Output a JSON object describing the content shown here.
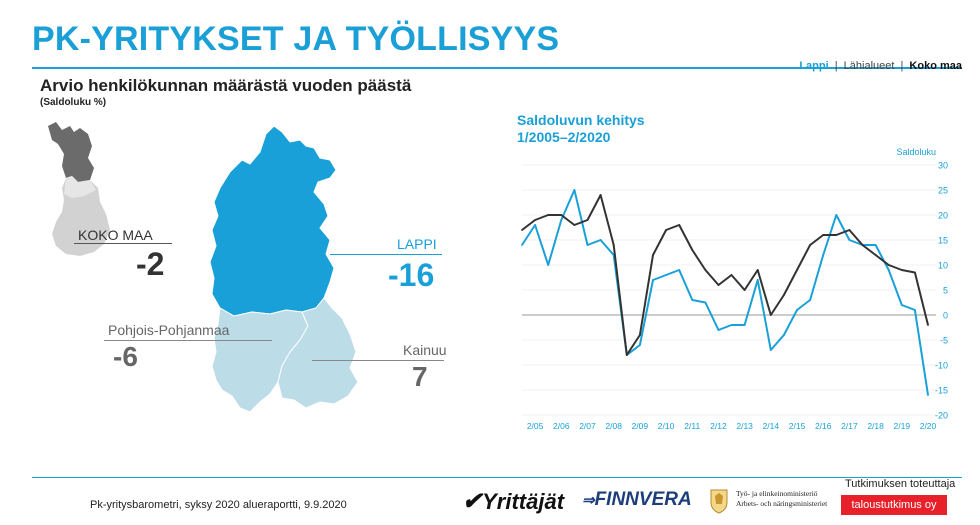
{
  "header": {
    "title": "PK-YRITYKSET JA TYÖLLISYYS",
    "region_nav": {
      "lappi": "Lappi",
      "sep1": "|",
      "lahialueet": "Lähialueet",
      "sep2": "|",
      "koko_maa": "Koko maa"
    }
  },
  "map_panel": {
    "title": "Arvio henkilökunnan määrästä vuoden päästä",
    "subtitle": "(Saldoluku %)",
    "regions": {
      "koko_maa": {
        "label": "KOKO MAA",
        "value": "-2"
      },
      "lappi": {
        "label": "LAPPI",
        "value": "-16"
      },
      "pohjois_pohjanmaa": {
        "label": "Pohjois-Pohjanmaa",
        "value": "-6"
      },
      "kainuu": {
        "label": "Kainuu",
        "value": "7"
      }
    },
    "colors": {
      "lappi": "#1aa0d8",
      "neighbors": "#bcdce8",
      "finland_dark": "#6b6b6b",
      "finland_light": "#d2d2d2"
    }
  },
  "chart_data": {
    "type": "line",
    "title": "Saldoluvun kehitys",
    "subtitle": "1/2005–2/2020",
    "ylabel": "Saldoluku",
    "ylim": [
      -20,
      30
    ],
    "yticks": [
      -20,
      -15,
      -10,
      -5,
      0,
      5,
      10,
      15,
      20,
      25,
      30
    ],
    "x_tick_labels": [
      "2/05",
      "2/06",
      "2/07",
      "2/08",
      "2/09",
      "2/10",
      "2/11",
      "2/12",
      "2/13",
      "2/14",
      "2/15",
      "2/16",
      "2/17",
      "2/18",
      "2/19",
      "2/20"
    ],
    "grid": "horizontal",
    "zero_line": true,
    "series": [
      {
        "color": "#1aa0d8",
        "values": [
          14,
          18,
          10,
          19,
          25,
          14,
          15,
          12,
          -8,
          -6,
          7,
          8,
          9,
          3,
          2.5,
          -3,
          -2,
          -2,
          7,
          -7,
          -4,
          1,
          3,
          12,
          20,
          15,
          14,
          14,
          9,
          2,
          1,
          -16
        ]
      },
      {
        "color": "#333333",
        "values": [
          17,
          19,
          20,
          20,
          18,
          19,
          24,
          14,
          -8,
          -4,
          12,
          17,
          18,
          13,
          9,
          6,
          8,
          5,
          9,
          0,
          4,
          9,
          14,
          16,
          16,
          17,
          14,
          12,
          10,
          9,
          8.5,
          -2
        ]
      }
    ]
  },
  "footer": {
    "note": "Pk-yritysbarometri, syksy 2020 alueraportti, 9.9.2020",
    "logo_yrittajat": "Yrittäjät",
    "logo_finnvera": "FINNVERA",
    "logo_tem_line1": "Työ- ja elinkeinoministeriö",
    "logo_tem_line2": "Arbets- och näringsministeriet",
    "producer_label": "Tutkimuksen toteuttaja",
    "logo_producer": "taloustutkimus oy"
  }
}
